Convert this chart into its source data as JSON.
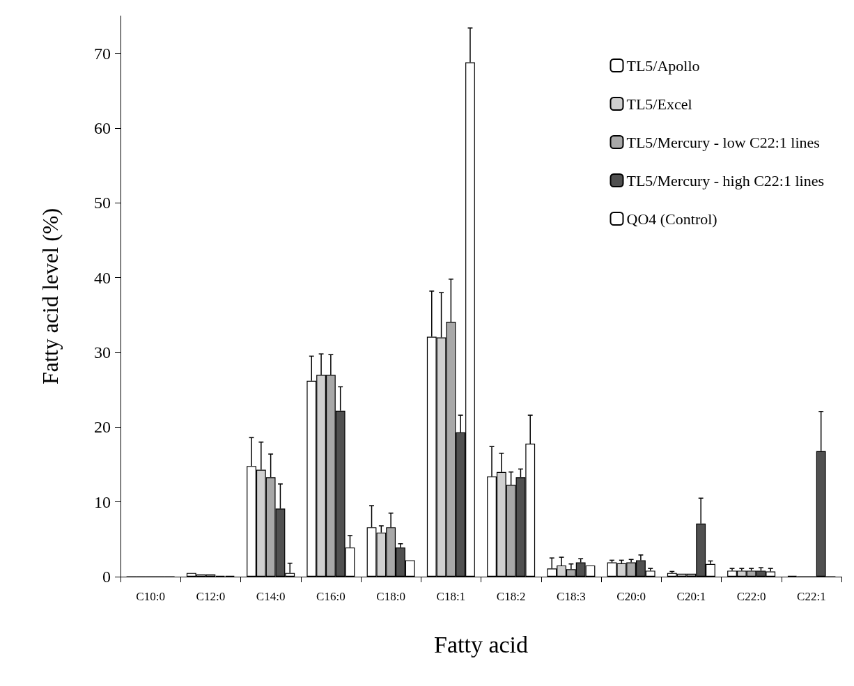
{
  "chart_data": {
    "type": "bar",
    "xlabel": "Fatty acid",
    "ylabel": "Fatty acid level (%)",
    "categories": [
      "C10:0",
      "C12:0",
      "C14:0",
      "C16:0",
      "C18:0",
      "C18:1",
      "C18:2",
      "C18:3",
      "C20:0",
      "C20:1",
      "C22:0",
      "C22:1"
    ],
    "series": [
      {
        "name": "TL5/Apollo",
        "color": "#ffffff",
        "values": [
          0,
          0.5,
          14.8,
          26.2,
          6.6,
          32.1,
          13.4,
          1.1,
          1.9,
          0.5,
          0.8,
          0.1
        ],
        "errors": [
          null,
          null,
          3.8,
          3.3,
          2.9,
          6.1,
          4.0,
          1.4,
          0.3,
          0.2,
          0.3,
          null
        ]
      },
      {
        "name": "TL5/Excel",
        "color": "#d0d0d0",
        "values": [
          0,
          0.3,
          14.3,
          27.0,
          5.9,
          32.0,
          14.0,
          1.5,
          1.8,
          0.4,
          0.8,
          0
        ],
        "errors": [
          null,
          null,
          3.7,
          2.8,
          0.9,
          6.0,
          2.5,
          1.1,
          0.4,
          null,
          0.3,
          null
        ]
      },
      {
        "name": "TL5/Mercury - low C22:1 lines",
        "color": "#a8a8a8",
        "values": [
          0,
          0.3,
          13.3,
          27.0,
          6.6,
          34.1,
          12.3,
          1.0,
          1.9,
          0.4,
          0.8,
          0
        ],
        "errors": [
          null,
          null,
          3.1,
          2.7,
          1.9,
          5.7,
          1.7,
          0.7,
          0.4,
          null,
          0.3,
          null
        ]
      },
      {
        "name": "TL5/Mercury - high C22:1 lines",
        "color": "#505050",
        "values": [
          0,
          0.1,
          9.1,
          22.2,
          3.9,
          19.3,
          13.3,
          1.9,
          2.2,
          7.1,
          0.8,
          16.8
        ],
        "errors": [
          null,
          null,
          3.3,
          3.2,
          0.5,
          2.3,
          1.1,
          0.5,
          0.7,
          3.4,
          0.4,
          5.3
        ]
      },
      {
        "name": "QO4 (Control)",
        "color": "#ffffff",
        "values": [
          0,
          0.1,
          0.5,
          3.9,
          2.2,
          68.8,
          17.8,
          1.5,
          0.8,
          1.7,
          0.7,
          0
        ],
        "errors": [
          null,
          null,
          1.3,
          1.6,
          null,
          4.6,
          3.8,
          null,
          0.3,
          0.4,
          0.4,
          null
        ]
      }
    ],
    "ylim": [
      0,
      75
    ],
    "yticks": [
      0,
      10,
      20,
      30,
      40,
      50,
      60,
      70
    ],
    "grid": false,
    "legend": "top right"
  }
}
